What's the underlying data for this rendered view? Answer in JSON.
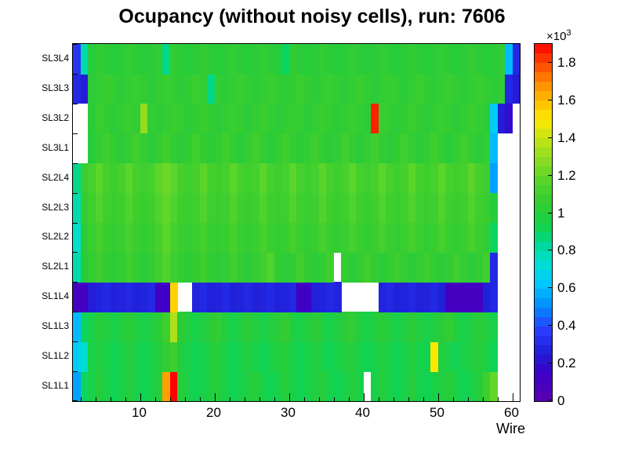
{
  "title": "Ocupancy (without noisy cells), run: 7606",
  "x_axis": {
    "label": "Wire",
    "tick_labels": [
      "10",
      "20",
      "30",
      "40",
      "50",
      "60"
    ],
    "tick_values": [
      10,
      20,
      30,
      40,
      50,
      60
    ],
    "minor_tick_step": 2
  },
  "y_axis": {
    "labels": [
      "SL1L1",
      "SL1L2",
      "SL1L3",
      "SL1L4",
      "SL2L1",
      "SL2L2",
      "SL2L3",
      "SL2L4",
      "SL3L1",
      "SL3L2",
      "SL3L3",
      "SL3L4"
    ]
  },
  "colorbar": {
    "tick_labels": [
      "0",
      "0.2",
      "0.4",
      "0.6",
      "0.8",
      "1",
      "1.2",
      "1.4",
      "1.6",
      "1.8"
    ],
    "tick_values": [
      0,
      0.2,
      0.4,
      0.6,
      0.8,
      1,
      1.2,
      1.4,
      1.6,
      1.8
    ],
    "times_label": "×10",
    "exponent": "3",
    "zmin": 0,
    "zmax": 1.9
  },
  "chart_data": {
    "type": "heatmap",
    "title": "Ocupancy (without noisy cells), run: 7606",
    "xlabel": "Wire",
    "x_range": [
      1,
      61
    ],
    "units": "counts ×10³",
    "zmin": 0,
    "zmax": 1.9,
    "rows_bottom_to_top": [
      "SL1L1",
      "SL1L2",
      "SL1L3",
      "SL1L4",
      "SL2L1",
      "SL2L2",
      "SL2L3",
      "SL2L4",
      "SL3L1",
      "SL3L2",
      "SL3L3",
      "SL3L4"
    ],
    "notable_features": [
      "red hot cell at wire 14 in SL1L1 (~1.9e3)",
      "orange cell at wire 13 in SL1L1 (~1.65e3)",
      "yellow cell at wire 49 in SL1L2 (~1.5e3)",
      "red hot cell at wire 41 in SL3L2 (~1.85e3)",
      "orange cell at wire 14 in SL1L4 (~1.55e3)",
      "SL1L4 layer mostly dead/low occupancy (dark blue/purple ~0.1-0.3e3)",
      "white gaps (no data): SL1L1 wire 40, SL1L4 wires 15-16 and 37-41, SL2L1 wire 36, SL3L1-SL3L2 wires 1-2, right edge beyond wire 57 for most layers"
    ],
    "palette_stops": [
      [
        0.0,
        "#5a00b0"
      ],
      [
        0.08,
        "#3c00c8"
      ],
      [
        0.14,
        "#2020d8"
      ],
      [
        0.2,
        "#2a3cff"
      ],
      [
        0.27,
        "#0090ff"
      ],
      [
        0.33,
        "#00c8ff"
      ],
      [
        0.39,
        "#00e0d0"
      ],
      [
        0.44,
        "#00d896"
      ],
      [
        0.48,
        "#0ed455"
      ],
      [
        0.53,
        "#28cc38"
      ],
      [
        0.58,
        "#3ecf2e"
      ],
      [
        0.63,
        "#62d62a"
      ],
      [
        0.68,
        "#8fdc20"
      ],
      [
        0.74,
        "#c8e414"
      ],
      [
        0.79,
        "#ffe800"
      ],
      [
        0.85,
        "#ffb400"
      ],
      [
        0.9,
        "#ff8000"
      ],
      [
        1.0,
        "#ff0000"
      ]
    ],
    "values": [
      [
        0.55,
        0.9,
        0.95,
        1.0,
        0.95,
        0.92,
        0.95,
        1.0,
        0.95,
        0.92,
        0.95,
        1.0,
        1.65,
        1.9,
        1.0,
        0.95,
        0.92,
        0.95,
        0.98,
        1.0,
        0.95,
        0.92,
        0.95,
        0.98,
        1.0,
        0.95,
        0.92,
        0.95,
        1.0,
        0.95,
        0.92,
        0.95,
        0.98,
        1.0,
        0.95,
        0.92,
        0.95,
        1.0,
        0.95,
        null,
        0.95,
        1.0,
        0.95,
        0.92,
        0.95,
        1.0,
        0.95,
        0.92,
        0.95,
        0.98,
        1.0,
        0.95,
        0.92,
        0.95,
        1.0,
        1.1,
        1.2,
        null,
        null,
        null
      ],
      [
        0.65,
        0.75,
        0.95,
        0.98,
        0.95,
        0.92,
        0.95,
        1.0,
        0.95,
        0.92,
        0.95,
        0.98,
        1.05,
        1.1,
        0.98,
        0.95,
        0.92,
        0.95,
        0.98,
        1.0,
        0.95,
        0.92,
        0.95,
        0.98,
        0.95,
        0.92,
        0.95,
        0.98,
        1.0,
        0.95,
        0.92,
        0.95,
        0.98,
        0.95,
        0.92,
        0.95,
        0.98,
        1.0,
        0.95,
        0.92,
        0.95,
        0.98,
        0.95,
        0.92,
        0.95,
        0.98,
        0.95,
        0.92,
        1.5,
        0.98,
        0.95,
        0.92,
        0.95,
        0.98,
        1.0,
        0.95,
        0.92,
        null,
        null,
        null
      ],
      [
        0.6,
        0.9,
        0.95,
        1.0,
        0.98,
        0.95,
        0.98,
        1.02,
        0.98,
        0.95,
        0.98,
        1.02,
        1.1,
        1.35,
        1.02,
        0.98,
        0.95,
        0.98,
        1.02,
        1.05,
        0.98,
        0.95,
        0.98,
        1.02,
        0.98,
        0.95,
        0.98,
        1.02,
        1.05,
        0.98,
        0.95,
        0.98,
        1.02,
        0.98,
        0.95,
        0.98,
        1.02,
        1.05,
        0.98,
        0.95,
        0.98,
        1.02,
        0.98,
        0.95,
        0.98,
        1.02,
        0.98,
        0.95,
        0.98,
        1.02,
        1.05,
        0.98,
        0.95,
        0.98,
        1.02,
        0.98,
        0.95,
        null,
        null,
        null
      ],
      [
        0.1,
        0.12,
        0.25,
        0.28,
        0.3,
        0.27,
        0.28,
        0.3,
        0.27,
        0.28,
        0.3,
        0.12,
        0.15,
        1.55,
        null,
        null,
        0.28,
        0.3,
        0.27,
        0.28,
        0.3,
        0.27,
        0.28,
        0.3,
        0.27,
        0.28,
        0.3,
        0.27,
        0.28,
        0.3,
        0.12,
        0.15,
        0.27,
        0.28,
        0.3,
        0.28,
        null,
        null,
        null,
        null,
        null,
        0.28,
        0.3,
        0.27,
        0.28,
        0.3,
        0.27,
        0.28,
        0.3,
        0.27,
        0.12,
        0.1,
        0.12,
        0.1,
        0.12,
        0.27,
        0.3,
        null,
        null,
        null
      ],
      [
        0.8,
        1.0,
        1.05,
        1.1,
        1.05,
        1.02,
        1.05,
        1.1,
        1.05,
        1.02,
        1.05,
        1.1,
        1.15,
        1.1,
        1.05,
        1.02,
        1.05,
        1.1,
        1.05,
        1.02,
        1.05,
        1.1,
        1.05,
        1.02,
        1.05,
        1.1,
        1.15,
        1.05,
        1.02,
        1.05,
        1.1,
        1.05,
        1.02,
        1.05,
        1.1,
        null,
        1.05,
        1.02,
        1.05,
        1.1,
        1.05,
        1.02,
        1.05,
        1.1,
        1.05,
        1.02,
        1.05,
        1.1,
        1.05,
        1.02,
        1.05,
        1.1,
        1.05,
        1.02,
        1.05,
        1.1,
        0.3,
        null,
        null,
        null
      ],
      [
        0.75,
        1.02,
        1.08,
        1.12,
        1.08,
        1.05,
        1.08,
        1.12,
        1.08,
        1.05,
        1.08,
        1.12,
        1.18,
        1.12,
        1.08,
        1.05,
        1.08,
        1.12,
        1.08,
        1.05,
        1.08,
        1.12,
        1.08,
        1.05,
        1.08,
        1.12,
        1.08,
        1.05,
        1.08,
        1.12,
        1.08,
        1.05,
        1.08,
        1.12,
        1.08,
        1.05,
        1.08,
        1.12,
        1.08,
        1.05,
        1.08,
        1.12,
        1.08,
        1.05,
        1.08,
        1.12,
        1.08,
        1.05,
        1.08,
        1.12,
        1.08,
        1.05,
        1.08,
        1.12,
        1.08,
        1.05,
        0.9,
        null,
        null,
        null
      ],
      [
        0.8,
        1.05,
        1.1,
        1.15,
        1.1,
        1.08,
        1.1,
        1.15,
        1.1,
        1.08,
        1.1,
        1.15,
        1.2,
        1.15,
        1.1,
        1.08,
        1.1,
        1.15,
        1.1,
        1.08,
        1.1,
        1.15,
        1.1,
        1.08,
        1.1,
        1.15,
        1.1,
        1.08,
        1.1,
        1.15,
        1.1,
        1.08,
        1.1,
        1.15,
        1.1,
        1.08,
        1.1,
        1.15,
        1.1,
        1.08,
        1.1,
        1.15,
        1.1,
        1.08,
        1.1,
        1.15,
        1.1,
        1.08,
        1.1,
        1.15,
        1.1,
        1.08,
        1.1,
        1.15,
        1.1,
        1.08,
        1.0,
        null,
        null,
        null
      ],
      [
        0.85,
        1.08,
        1.12,
        1.18,
        1.12,
        1.1,
        1.12,
        1.18,
        1.12,
        1.1,
        1.12,
        1.18,
        1.22,
        1.18,
        1.12,
        1.1,
        1.12,
        1.18,
        1.12,
        1.1,
        1.12,
        1.18,
        1.12,
        1.1,
        1.12,
        1.18,
        1.12,
        1.1,
        1.12,
        1.18,
        1.12,
        1.1,
        1.12,
        1.18,
        1.12,
        1.1,
        1.12,
        1.18,
        1.12,
        1.1,
        1.12,
        1.18,
        1.12,
        1.1,
        1.12,
        1.18,
        1.12,
        1.1,
        1.12,
        1.18,
        1.12,
        1.1,
        1.12,
        1.18,
        1.12,
        1.1,
        0.55,
        null,
        null,
        null
      ],
      [
        null,
        null,
        1.0,
        1.05,
        1.1,
        1.05,
        1.02,
        1.05,
        1.1,
        1.05,
        1.02,
        1.05,
        1.1,
        1.05,
        1.02,
        1.05,
        1.1,
        1.05,
        1.02,
        1.05,
        1.1,
        1.05,
        1.02,
        1.05,
        1.1,
        1.05,
        1.02,
        1.05,
        1.1,
        1.05,
        1.02,
        1.05,
        1.1,
        1.05,
        1.02,
        1.05,
        1.1,
        1.05,
        1.02,
        1.05,
        1.1,
        1.05,
        1.02,
        1.05,
        1.1,
        1.05,
        1.02,
        1.05,
        1.1,
        1.05,
        1.02,
        1.05,
        1.1,
        1.05,
        1.02,
        1.05,
        0.6,
        null,
        null,
        null
      ],
      [
        null,
        null,
        1.02,
        1.08,
        1.05,
        1.02,
        1.05,
        1.08,
        1.05,
        1.3,
        1.05,
        1.02,
        1.05,
        1.08,
        1.05,
        1.02,
        1.05,
        1.08,
        1.05,
        1.02,
        1.05,
        1.08,
        1.05,
        1.02,
        1.05,
        1.08,
        1.05,
        1.02,
        1.05,
        1.08,
        1.05,
        1.02,
        1.05,
        1.08,
        1.05,
        1.02,
        1.05,
        1.08,
        1.05,
        1.02,
        1.85,
        1.08,
        1.05,
        1.02,
        1.05,
        1.08,
        1.05,
        1.02,
        1.05,
        1.08,
        1.05,
        1.02,
        1.05,
        1.08,
        1.05,
        1.02,
        0.65,
        0.25,
        0.2,
        null
      ],
      [
        0.3,
        0.25,
        1.02,
        1.05,
        1.08,
        1.05,
        1.02,
        1.05,
        1.08,
        1.05,
        1.02,
        1.05,
        1.08,
        1.05,
        1.02,
        1.05,
        1.08,
        1.05,
        0.85,
        1.05,
        1.02,
        1.05,
        1.08,
        1.05,
        1.02,
        1.05,
        1.08,
        1.05,
        1.02,
        1.05,
        1.08,
        1.05,
        1.02,
        1.05,
        1.08,
        1.05,
        1.02,
        1.05,
        1.08,
        1.05,
        1.02,
        1.05,
        1.08,
        1.05,
        1.02,
        1.05,
        1.08,
        1.05,
        1.02,
        1.05,
        1.08,
        1.05,
        1.02,
        1.05,
        1.08,
        1.05,
        1.02,
        1.05,
        0.3,
        0.25
      ],
      [
        0.35,
        0.8,
        1.0,
        1.05,
        1.02,
        1.0,
        1.02,
        1.05,
        1.02,
        1.0,
        1.02,
        1.05,
        0.85,
        1.05,
        1.02,
        1.0,
        1.02,
        1.05,
        1.02,
        1.0,
        1.02,
        1.05,
        1.02,
        1.0,
        1.02,
        1.05,
        1.02,
        1.0,
        0.9,
        1.05,
        1.02,
        1.0,
        1.02,
        1.05,
        1.02,
        1.0,
        1.02,
        1.05,
        1.02,
        1.0,
        1.02,
        1.05,
        1.02,
        1.0,
        1.02,
        1.05,
        1.02,
        1.0,
        1.02,
        1.05,
        1.02,
        1.0,
        1.02,
        1.05,
        1.02,
        1.0,
        1.02,
        1.05,
        0.6,
        0.3
      ]
    ]
  }
}
